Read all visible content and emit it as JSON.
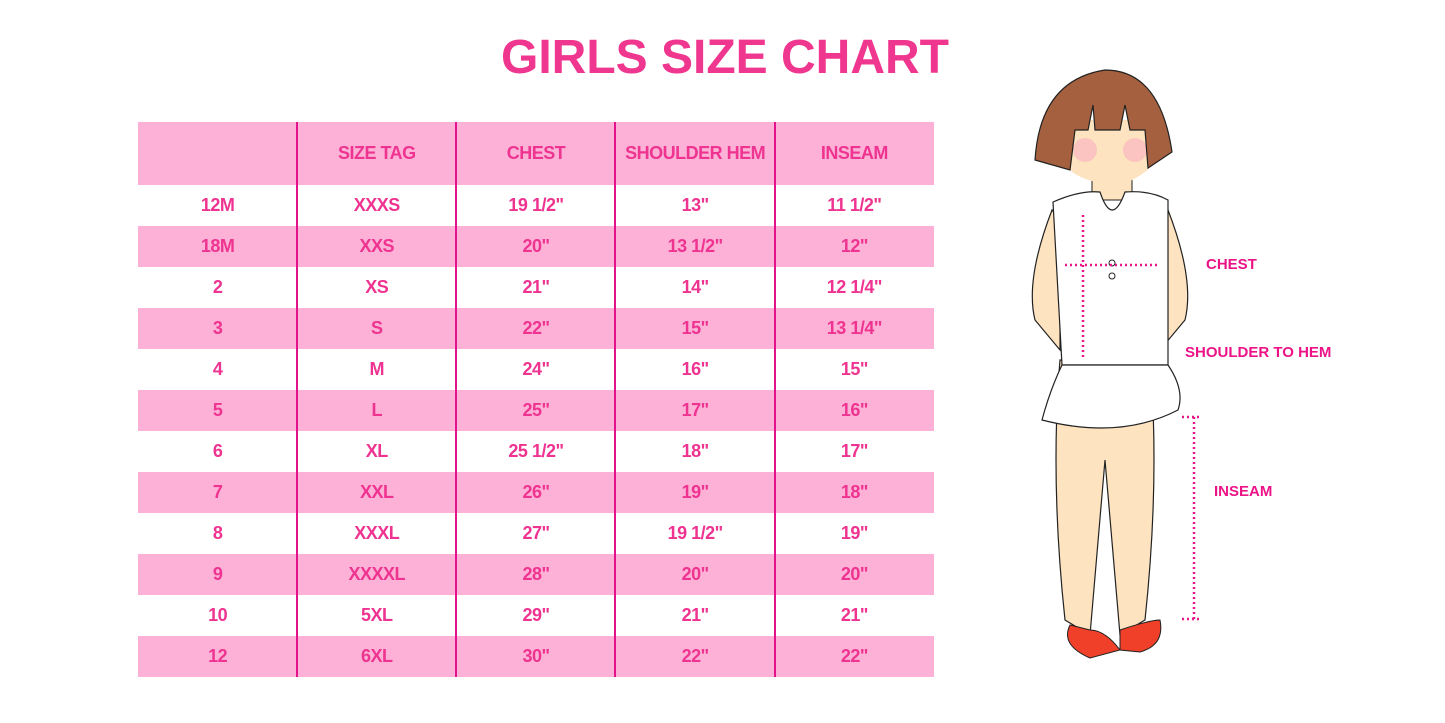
{
  "title": "GIRLS SIZE CHART",
  "table": {
    "headers": [
      "",
      "SIZE TAG",
      "CHEST",
      "SHOULDER HEM",
      "INSEAM"
    ],
    "rows": [
      [
        "12M",
        "XXXS",
        "19 1/2\"",
        "13\"",
        "11 1/2\""
      ],
      [
        "18M",
        "XXS",
        "20\"",
        "13 1/2\"",
        "12\""
      ],
      [
        "2",
        "XS",
        "21\"",
        "14\"",
        "12 1/4\""
      ],
      [
        "3",
        "S",
        "22\"",
        "15\"",
        "13 1/4\""
      ],
      [
        "4",
        "M",
        "24\"",
        "16\"",
        "15\""
      ],
      [
        "5",
        "L",
        "25\"",
        "17\"",
        "16\""
      ],
      [
        "6",
        "XL",
        "25 1/2\"",
        "18\"",
        "17\""
      ],
      [
        "7",
        "XXL",
        "26\"",
        "19\"",
        "18\""
      ],
      [
        "8",
        "XXXL",
        "27\"",
        "19 1/2\"",
        "19\""
      ],
      [
        "9",
        "XXXXL",
        "28\"",
        "20\"",
        "20\""
      ],
      [
        "10",
        "5XL",
        "29\"",
        "21\"",
        "21\""
      ],
      [
        "12",
        "6XL",
        "30\"",
        "22\"",
        "22\""
      ]
    ]
  },
  "illustration": {
    "labels": {
      "chest": "CHEST",
      "shoulder_to_hem": "SHOULDER TO HEM",
      "inseam": "INSEAM"
    }
  },
  "colors": {
    "accent": "#ee3390",
    "row_pink": "#fdb1d6",
    "divider": "#e2128c"
  }
}
